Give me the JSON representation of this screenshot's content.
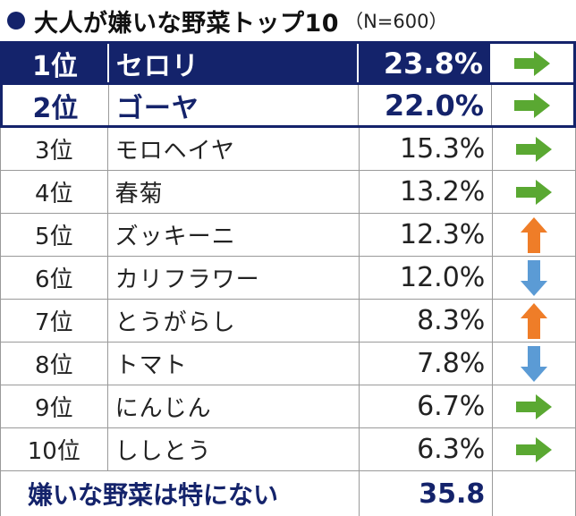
{
  "title": {
    "main": "大人が嫌いな野菜トップ10",
    "sub": "（N=600）"
  },
  "rows": [
    {
      "rank": "1位",
      "name": "セロリ",
      "percent": "23.8%",
      "trend": "flat"
    },
    {
      "rank": "2位",
      "name": "ゴーヤ",
      "percent": "22.0%",
      "trend": "flat"
    },
    {
      "rank": "3位",
      "name": "モロヘイヤ",
      "percent": "15.3%",
      "trend": "flat"
    },
    {
      "rank": "4位",
      "name": "春菊",
      "percent": "13.2%",
      "trend": "flat"
    },
    {
      "rank": "5位",
      "name": "ズッキーニ",
      "percent": "12.3%",
      "trend": "up"
    },
    {
      "rank": "6位",
      "name": "カリフラワー",
      "percent": "12.0%",
      "trend": "down"
    },
    {
      "rank": "7位",
      "name": "とうがらし",
      "percent": "8.3%",
      "trend": "up"
    },
    {
      "rank": "8位",
      "name": "トマト",
      "percent": "7.8%",
      "trend": "down"
    },
    {
      "rank": "9位",
      "name": "にんじん",
      "percent": "6.7%",
      "trend": "flat"
    },
    {
      "rank": "10位",
      "name": "ししとう",
      "percent": "6.3%",
      "trend": "flat"
    }
  ],
  "footer": {
    "label": "嫌いな野菜は特にない",
    "value": "35.8"
  },
  "colors": {
    "navy": "#14236b",
    "flat_arrow": "#5aa832",
    "up_arrow": "#ef7d28",
    "down_arrow": "#5b9bd5"
  }
}
